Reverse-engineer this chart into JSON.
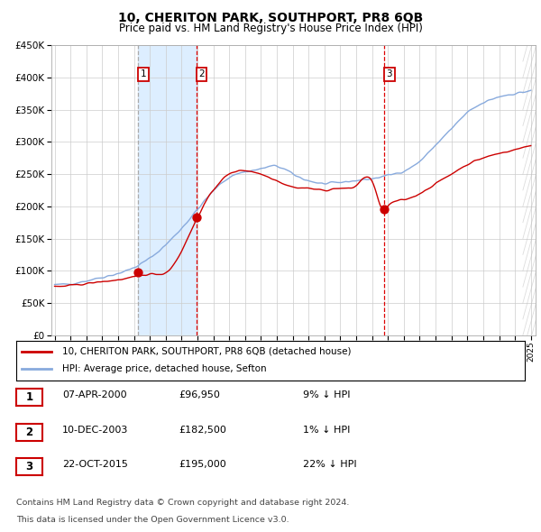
{
  "title": "10, CHERITON PARK, SOUTHPORT, PR8 6QB",
  "subtitle": "Price paid vs. HM Land Registry's House Price Index (HPI)",
  "ylim": [
    0,
    450000
  ],
  "yticks": [
    0,
    50000,
    100000,
    150000,
    200000,
    250000,
    300000,
    350000,
    400000,
    450000
  ],
  "x_start_year": 1995,
  "x_end_year": 2025,
  "sale_month_indices": [
    63,
    107,
    249
  ],
  "sale_prices": [
    96950,
    182500,
    195000
  ],
  "sale_labels": [
    "1",
    "2",
    "3"
  ],
  "legend_property": "10, CHERITON PARK, SOUTHPORT, PR8 6QB (detached house)",
  "legend_hpi": "HPI: Average price, detached house, Sefton",
  "property_color": "#cc0000",
  "hpi_color": "#88aadd",
  "shading_color": "#ddeeff",
  "vline1_color": "#aaaaaa",
  "vline2_color": "#dd0000",
  "vline3_color": "#dd0000",
  "table_rows": [
    [
      "1",
      "07-APR-2000",
      "£96,950",
      "9% ↓ HPI"
    ],
    [
      "2",
      "10-DEC-2003",
      "£182,500",
      "1% ↓ HPI"
    ],
    [
      "3",
      "22-OCT-2015",
      "£195,000",
      "22% ↓ HPI"
    ]
  ],
  "footer_line1": "Contains HM Land Registry data © Crown copyright and database right 2024.",
  "footer_line2": "This data is licensed under the Open Government Licence v3.0.",
  "background_color": "#ffffff",
  "grid_color": "#cccccc",
  "hpi_ctrl_x": [
    0.0,
    0.033,
    0.1,
    0.167,
    0.233,
    0.3,
    0.367,
    0.433,
    0.467,
    0.5,
    0.533,
    0.567,
    0.6,
    0.633,
    0.667,
    0.7,
    0.733,
    0.767,
    0.8,
    0.833,
    0.867,
    0.9,
    0.933,
    0.967,
    1.0
  ],
  "hpi_ctrl_y": [
    78000,
    80000,
    90000,
    105000,
    140000,
    195000,
    245000,
    258000,
    262000,
    250000,
    240000,
    235000,
    237000,
    240000,
    243000,
    248000,
    255000,
    270000,
    295000,
    320000,
    345000,
    360000,
    370000,
    375000,
    380000
  ],
  "prop_ctrl_x": [
    0.0,
    0.033,
    0.1,
    0.167,
    0.208,
    0.233,
    0.3,
    0.35,
    0.367,
    0.433,
    0.467,
    0.5,
    0.533,
    0.567,
    0.6,
    0.633,
    0.667,
    0.69,
    0.7,
    0.733,
    0.767,
    0.8,
    0.833,
    0.867,
    0.9,
    0.933,
    0.967,
    1.0
  ],
  "prop_ctrl_y": [
    75000,
    77000,
    83000,
    90000,
    95000,
    96950,
    182500,
    240000,
    250000,
    250000,
    240000,
    230000,
    228000,
    225000,
    228000,
    232000,
    238000,
    195000,
    200000,
    210000,
    220000,
    235000,
    250000,
    265000,
    275000,
    282000,
    288000,
    295000
  ]
}
